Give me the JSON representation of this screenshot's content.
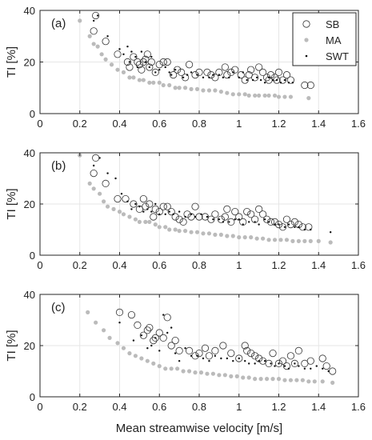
{
  "chart_data": [
    {
      "type": "scatter",
      "panel_label": "(a)",
      "ylabel": "TI [%]",
      "xlim": [
        0,
        1.6
      ],
      "ylim": [
        0,
        40
      ],
      "xticks": [
        "0",
        "0.2",
        "0.4",
        "0.6",
        "0.8",
        "1",
        "1.2",
        "1.4",
        "1.6"
      ],
      "yticks": [
        "0",
        "20",
        "40"
      ],
      "grid": true,
      "legend": {
        "position": "top-right",
        "entries": [
          "SB",
          "MA",
          "SWT"
        ]
      },
      "series": [
        {
          "name": "SB",
          "marker": "open-circle",
          "color": "#333333",
          "x": [
            0.27,
            0.28,
            0.33,
            0.39,
            0.44,
            0.45,
            0.47,
            0.49,
            0.5,
            0.51,
            0.52,
            0.53,
            0.54,
            0.55,
            0.56,
            0.58,
            0.6,
            0.62,
            0.64,
            0.67,
            0.69,
            0.71,
            0.73,
            0.75,
            0.78,
            0.8,
            0.84,
            0.86,
            0.88,
            0.9,
            0.93,
            0.94,
            0.96,
            0.98,
            1.01,
            1.03,
            1.05,
            1.06,
            1.08,
            1.1,
            1.12,
            1.14,
            1.15,
            1.16,
            1.18,
            1.19,
            1.2,
            1.22,
            1.24,
            1.26,
            1.33,
            1.36
          ],
          "y": [
            32,
            38,
            28,
            23,
            20,
            18,
            22,
            20,
            19,
            17,
            20,
            21,
            23,
            18,
            20,
            16,
            19,
            20,
            20,
            15,
            17,
            16,
            14,
            19,
            15,
            16,
            16,
            15,
            14,
            16,
            18,
            15,
            16,
            17,
            15,
            13,
            15,
            17,
            14,
            18,
            16,
            14,
            13,
            15,
            14,
            13,
            16,
            13,
            15,
            13,
            11,
            11
          ]
        },
        {
          "name": "MA",
          "marker": "filled-circle",
          "color": "#bbbbbb",
          "x": [
            0.2,
            0.25,
            0.27,
            0.29,
            0.31,
            0.33,
            0.36,
            0.39,
            0.42,
            0.45,
            0.47,
            0.5,
            0.52,
            0.55,
            0.57,
            0.6,
            0.62,
            0.65,
            0.68,
            0.7,
            0.73,
            0.76,
            0.79,
            0.82,
            0.85,
            0.88,
            0.91,
            0.94,
            0.97,
            1.0,
            1.03,
            1.05,
            1.08,
            1.1,
            1.13,
            1.15,
            1.18,
            1.2,
            1.23,
            1.26,
            1.35
          ],
          "y": [
            36,
            30,
            27,
            26,
            23,
            21,
            19,
            17,
            16,
            14,
            14,
            13,
            13,
            12,
            12,
            12,
            11,
            11,
            10,
            10,
            10,
            9.5,
            9.5,
            9,
            9,
            9,
            8.5,
            8,
            7.5,
            7.5,
            7.5,
            7,
            7,
            7,
            7,
            7,
            7,
            6.5,
            6.5,
            6.5,
            6
          ]
        },
        {
          "name": "SWT",
          "marker": "dot",
          "color": "#111111",
          "x": [
            0.27,
            0.29,
            0.34,
            0.4,
            0.42,
            0.44,
            0.45,
            0.46,
            0.48,
            0.49,
            0.51,
            0.53,
            0.55,
            0.56,
            0.58,
            0.6,
            0.63,
            0.65,
            0.66,
            0.68,
            0.72,
            0.74,
            0.76,
            0.79,
            0.82,
            0.85,
            0.87,
            0.9,
            0.92,
            0.95,
            0.97,
            1.0,
            1.02,
            1.04,
            1.07,
            1.09,
            1.11,
            1.13,
            1.15,
            1.17,
            1.19,
            1.21,
            1.23,
            1.25,
            1.27
          ],
          "y": [
            36,
            38,
            30,
            25,
            23,
            26,
            20,
            24,
            22,
            18,
            24,
            20,
            18,
            22,
            16,
            17,
            18,
            16,
            15,
            17,
            14,
            15,
            16,
            15,
            14,
            14,
            15,
            15,
            14,
            14,
            16,
            14,
            16,
            13,
            13,
            14,
            13,
            12,
            14,
            13,
            13,
            12,
            13,
            12,
            12
          ]
        }
      ]
    },
    {
      "type": "scatter",
      "panel_label": "(b)",
      "ylabel": "TI [%]",
      "xlim": [
        0,
        1.6
      ],
      "ylim": [
        0,
        40
      ],
      "xticks": [
        "0",
        "0.2",
        "0.4",
        "0.6",
        "0.8",
        "1",
        "1.2",
        "1.4",
        "1.6"
      ],
      "yticks": [
        "0",
        "20",
        "40"
      ],
      "grid": true,
      "series": [
        {
          "name": "SB",
          "marker": "open-circle",
          "color": "#333333",
          "x": [
            0.27,
            0.28,
            0.33,
            0.39,
            0.43,
            0.47,
            0.5,
            0.52,
            0.53,
            0.55,
            0.57,
            0.58,
            0.6,
            0.62,
            0.64,
            0.66,
            0.68,
            0.7,
            0.72,
            0.74,
            0.76,
            0.78,
            0.8,
            0.83,
            0.86,
            0.88,
            0.91,
            0.93,
            0.94,
            0.96,
            0.98,
            1.0,
            1.02,
            1.04,
            1.06,
            1.08,
            1.1,
            1.12,
            1.14,
            1.16,
            1.18,
            1.2,
            1.22,
            1.24,
            1.26,
            1.28,
            1.3,
            1.32,
            1.35
          ],
          "y": [
            32,
            38,
            28,
            22,
            22,
            20,
            18,
            22,
            19,
            20,
            15,
            18,
            17,
            19,
            19,
            17,
            15,
            14,
            13,
            16,
            15,
            19,
            15,
            15,
            14,
            16,
            14,
            15,
            18,
            13,
            17,
            15,
            13,
            17,
            16,
            14,
            18,
            16,
            14,
            13,
            13,
            12,
            11,
            14,
            12,
            13,
            12,
            11,
            11
          ]
        },
        {
          "name": "MA",
          "marker": "filled-circle",
          "color": "#bbbbbb",
          "x": [
            0.2,
            0.25,
            0.27,
            0.3,
            0.32,
            0.34,
            0.37,
            0.4,
            0.42,
            0.45,
            0.48,
            0.5,
            0.53,
            0.55,
            0.58,
            0.6,
            0.63,
            0.65,
            0.68,
            0.7,
            0.73,
            0.76,
            0.79,
            0.82,
            0.85,
            0.88,
            0.91,
            0.94,
            0.97,
            1.0,
            1.03,
            1.06,
            1.09,
            1.12,
            1.15,
            1.18,
            1.21,
            1.24,
            1.27,
            1.3,
            1.33,
            1.36,
            1.4,
            1.46
          ],
          "y": [
            39,
            28,
            26,
            24,
            21,
            19,
            18,
            17,
            16,
            15,
            14,
            13,
            13,
            13,
            12,
            11,
            11,
            10,
            10,
            9.5,
            9.5,
            9,
            9,
            8.5,
            8.5,
            8,
            8,
            7.5,
            7.5,
            7,
            7,
            7,
            6.5,
            6.5,
            6,
            6,
            6,
            6,
            5.5,
            5.5,
            5.5,
            5.5,
            5.5,
            5
          ]
        },
        {
          "name": "SWT",
          "marker": "dot",
          "color": "#111111",
          "x": [
            0.27,
            0.3,
            0.34,
            0.38,
            0.41,
            0.44,
            0.46,
            0.48,
            0.5,
            0.52,
            0.54,
            0.56,
            0.58,
            0.6,
            0.63,
            0.65,
            0.67,
            0.7,
            0.73,
            0.76,
            0.78,
            0.81,
            0.84,
            0.87,
            0.9,
            0.92,
            0.95,
            0.98,
            1.0,
            1.02,
            1.05,
            1.08,
            1.1,
            1.13,
            1.15,
            1.18,
            1.2,
            1.23,
            1.25,
            1.28,
            1.3,
            1.33,
            1.36,
            1.46
          ],
          "y": [
            35,
            38,
            32,
            30,
            24,
            21,
            18,
            20,
            19,
            17,
            18,
            17,
            20,
            16,
            16,
            17,
            16,
            17,
            15,
            16,
            15,
            16,
            15,
            14,
            14,
            13,
            13,
            14,
            14,
            12,
            13,
            13,
            12,
            14,
            13,
            12,
            12,
            11,
            12,
            11,
            11,
            10,
            10,
            9
          ]
        }
      ]
    },
    {
      "type": "scatter",
      "panel_label": "(c)",
      "ylabel": "TI [%]",
      "xlabel": "Mean streamwise velocity [m/s]",
      "xlim": [
        0,
        1.6
      ],
      "ylim": [
        0,
        40
      ],
      "xticks": [
        "0",
        "0.2",
        "0.4",
        "0.6",
        "0.8",
        "1",
        "1.2",
        "1.4",
        "1.6"
      ],
      "yticks": [
        "0",
        "20",
        "40"
      ],
      "grid": true,
      "series": [
        {
          "name": "SB",
          "marker": "open-circle",
          "color": "#333333",
          "x": [
            0.4,
            0.46,
            0.49,
            0.52,
            0.54,
            0.55,
            0.57,
            0.58,
            0.6,
            0.62,
            0.64,
            0.66,
            0.68,
            0.7,
            0.75,
            0.78,
            0.8,
            0.83,
            0.85,
            0.88,
            0.92,
            0.96,
            1.0,
            1.03,
            1.04,
            1.06,
            1.08,
            1.1,
            1.12,
            1.15,
            1.17,
            1.2,
            1.22,
            1.24,
            1.26,
            1.28,
            1.3,
            1.33,
            1.36,
            1.42,
            1.44,
            1.47
          ],
          "y": [
            33,
            32,
            28,
            24,
            26,
            27,
            22,
            23,
            25,
            23,
            31,
            20,
            22,
            18,
            18,
            16,
            17,
            19,
            16,
            18,
            20,
            17,
            15,
            20,
            18,
            17,
            16,
            15,
            14,
            13,
            17,
            13,
            14,
            12,
            16,
            13,
            18,
            13,
            14,
            15,
            12,
            10
          ]
        },
        {
          "name": "MA",
          "marker": "filled-circle",
          "color": "#bbbbbb",
          "x": [
            0.24,
            0.28,
            0.32,
            0.35,
            0.39,
            0.42,
            0.45,
            0.48,
            0.51,
            0.54,
            0.57,
            0.6,
            0.63,
            0.66,
            0.69,
            0.72,
            0.75,
            0.78,
            0.81,
            0.84,
            0.87,
            0.9,
            0.93,
            0.96,
            0.99,
            1.02,
            1.05,
            1.08,
            1.11,
            1.14,
            1.17,
            1.2,
            1.23,
            1.26,
            1.29,
            1.32,
            1.35,
            1.38,
            1.42,
            1.47
          ],
          "y": [
            33,
            29,
            26,
            23,
            21,
            19,
            17,
            16,
            15,
            14,
            13,
            12,
            11,
            11,
            11,
            10,
            10,
            9.5,
            9.5,
            9,
            9,
            8.5,
            8.5,
            8,
            8,
            7.5,
            7.5,
            7,
            7,
            7,
            7,
            7,
            6.5,
            6.5,
            6.5,
            6.5,
            6,
            6,
            6,
            5.5
          ]
        },
        {
          "name": "SWT",
          "marker": "dot",
          "color": "#111111",
          "x": [
            0.4,
            0.47,
            0.51,
            0.54,
            0.56,
            0.58,
            0.6,
            0.62,
            0.64,
            0.66,
            0.68,
            0.7,
            0.73,
            0.76,
            0.79,
            0.82,
            0.85,
            0.88,
            0.91,
            0.94,
            0.97,
            1.0,
            1.03,
            1.05,
            1.08,
            1.1,
            1.13,
            1.16,
            1.18,
            1.2,
            1.23,
            1.25,
            1.28,
            1.3,
            1.33,
            1.36,
            1.39,
            1.42,
            1.45
          ],
          "y": [
            29,
            22,
            24,
            19,
            20,
            23,
            18,
            32,
            25,
            27,
            17,
            14,
            19,
            16,
            16,
            15,
            14,
            16,
            15,
            15,
            14,
            15,
            14,
            13,
            13,
            14,
            14,
            13,
            12,
            13,
            12,
            11,
            13,
            12,
            11,
            11,
            12,
            11,
            10
          ]
        }
      ]
    }
  ]
}
